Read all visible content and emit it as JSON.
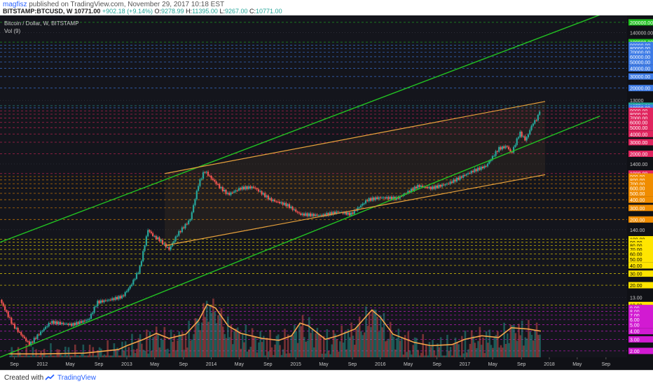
{
  "header": {
    "author": "magfisz",
    "published": "published on TradingView.com, November 29, 2017 10:18 EST",
    "symbol": "BITSTAMP:BTCUSD, W",
    "last": "10771.00",
    "change": "+902.18 (+9.14%)",
    "o_label": "O:",
    "o": "9278.99",
    "h_label": "H:",
    "h": "11395.00",
    "l_label": "L:",
    "l": "9267.00",
    "c_label": "C:",
    "c": "10771.00"
  },
  "legend": {
    "series_title": "Bitcoin / Dollar, W, BITSTAMP",
    "volume_title": "Vol (9)"
  },
  "footer": {
    "created": "Created with",
    "brand": "TradingView"
  },
  "colors": {
    "background": "#14151c",
    "green_channel": "#22c322",
    "orange_channel": "#e8a23c",
    "candle_up": "#26a69a",
    "candle_down": "#ef5350",
    "volume_ma": "#f5a54a"
  },
  "chart_data": {
    "type": "candlestick",
    "title": "Bitcoin / Dollar, W, BITSTAMP",
    "xlabel": "",
    "ylabel": "",
    "log_scale": true,
    "ylim": [
      1.6,
      220000
    ],
    "x_ticks": [
      "Sep",
      "2012",
      "May",
      "Sep",
      "2013",
      "May",
      "Sep",
      "2014",
      "May",
      "Sep",
      "2015",
      "May",
      "Sep",
      "2016",
      "May",
      "Sep",
      "2017",
      "May",
      "Sep",
      "2018",
      "May",
      "Sep"
    ],
    "x_tick_dates": [
      2011.67,
      2012.0,
      2012.33,
      2012.67,
      2013.0,
      2013.33,
      2013.67,
      2014.0,
      2014.33,
      2014.67,
      2015.0,
      2015.33,
      2015.67,
      2016.0,
      2016.33,
      2016.67,
      2017.0,
      2017.33,
      2017.67,
      2018.0,
      2018.33,
      2018.67
    ],
    "price_path": [
      [
        2011.5,
        12
      ],
      [
        2011.65,
        5
      ],
      [
        2011.85,
        2.5
      ],
      [
        2011.95,
        3.5
      ],
      [
        2012.1,
        5.5
      ],
      [
        2012.35,
        5
      ],
      [
        2012.55,
        6
      ],
      [
        2012.65,
        11
      ],
      [
        2012.8,
        12
      ],
      [
        2012.95,
        13.5
      ],
      [
        2013.05,
        20
      ],
      [
        2013.15,
        35
      ],
      [
        2013.25,
        140
      ],
      [
        2013.32,
        110
      ],
      [
        2013.38,
        100
      ],
      [
        2013.5,
        70
      ],
      [
        2013.6,
        120
      ],
      [
        2013.75,
        200
      ],
      [
        2013.85,
        700
      ],
      [
        2013.92,
        1100
      ],
      [
        2014.0,
        850
      ],
      [
        2014.1,
        620
      ],
      [
        2014.2,
        480
      ],
      [
        2014.35,
        600
      ],
      [
        2014.5,
        620
      ],
      [
        2014.7,
        400
      ],
      [
        2014.9,
        330
      ],
      [
        2015.05,
        240
      ],
      [
        2015.3,
        230
      ],
      [
        2015.5,
        260
      ],
      [
        2015.65,
        240
      ],
      [
        2015.85,
        400
      ],
      [
        2016.0,
        430
      ],
      [
        2016.2,
        420
      ],
      [
        2016.45,
        650
      ],
      [
        2016.6,
        600
      ],
      [
        2016.8,
        700
      ],
      [
        2017.0,
        950
      ],
      [
        2017.1,
        1100
      ],
      [
        2017.25,
        1300
      ],
      [
        2017.4,
        2400
      ],
      [
        2017.5,
        2600
      ],
      [
        2017.55,
        2000
      ],
      [
        2017.65,
        4200
      ],
      [
        2017.72,
        3200
      ],
      [
        2017.8,
        5700
      ],
      [
        2017.86,
        7000
      ],
      [
        2017.9,
        10771
      ]
    ],
    "volume_ma_path": [
      [
        2011.6,
        1.8
      ],
      [
        2012.0,
        1.8
      ],
      [
        2012.5,
        1.85
      ],
      [
        2012.9,
        2.1
      ],
      [
        2013.0,
        2.4
      ],
      [
        2013.2,
        3.0
      ],
      [
        2013.35,
        3.7
      ],
      [
        2013.5,
        3.1
      ],
      [
        2013.7,
        3.6
      ],
      [
        2013.85,
        5.8
      ],
      [
        2013.95,
        10.2
      ],
      [
        2014.05,
        9.0
      ],
      [
        2014.2,
        4.8
      ],
      [
        2014.35,
        3.7
      ],
      [
        2014.6,
        3.1
      ],
      [
        2014.8,
        2.9
      ],
      [
        2014.95,
        3.4
      ],
      [
        2015.05,
        5.3
      ],
      [
        2015.15,
        4.8
      ],
      [
        2015.35,
        3.0
      ],
      [
        2015.5,
        3.4
      ],
      [
        2015.7,
        4.3
      ],
      [
        2015.8,
        6.0
      ],
      [
        2015.9,
        8.4
      ],
      [
        2016.0,
        6.5
      ],
      [
        2016.15,
        3.6
      ],
      [
        2016.4,
        2.7
      ],
      [
        2016.6,
        2.4
      ],
      [
        2016.85,
        2.5
      ],
      [
        2017.0,
        3.0
      ],
      [
        2017.2,
        3.4
      ],
      [
        2017.4,
        3.2
      ],
      [
        2017.55,
        4.5
      ],
      [
        2017.75,
        4.3
      ],
      [
        2017.9,
        4.0
      ]
    ],
    "green_lines": [
      [
        [
          2011.5,
          90
        ],
        [
          2018.6,
          260000
        ]
      ],
      [
        [
          2011.5,
          1.6
        ],
        [
          2018.6,
          7500
        ]
      ]
    ],
    "orange_lines": [
      [
        [
          2013.45,
          1000
        ],
        [
          2017.95,
          12500
        ]
      ],
      [
        [
          2013.45,
          80
        ],
        [
          2017.95,
          960
        ]
      ]
    ],
    "axis_labels": [
      {
        "text": "200000.00",
        "value": 200000,
        "bg": "#20c020",
        "fg": "#ffffff"
      },
      {
        "text": "140000.00",
        "value": 140000,
        "bg": "",
        "fg": "#cfcfcf"
      },
      {
        "text": "100000.00",
        "value": 100000,
        "bg": "#20c020",
        "fg": "#ffffff"
      },
      {
        "text": "90000.00",
        "value": 90000,
        "bg": "#3d7be6",
        "fg": "#ffffff"
      },
      {
        "text": "80000.00",
        "value": 80000,
        "bg": "#3d7be6",
        "fg": "#ffffff"
      },
      {
        "text": "70000.00",
        "value": 70000,
        "bg": "#3d7be6",
        "fg": "#ffffff"
      },
      {
        "text": "60000.00",
        "value": 60000,
        "bg": "#3d7be6",
        "fg": "#ffffff"
      },
      {
        "text": "50000.00",
        "value": 50000,
        "bg": "#3d7be6",
        "fg": "#ffffff"
      },
      {
        "text": "40000.00",
        "value": 40000,
        "bg": "#3d7be6",
        "fg": "#ffffff"
      },
      {
        "text": "30000.00",
        "value": 30000,
        "bg": "#3d7be6",
        "fg": "#ffffff"
      },
      {
        "text": "20000.00",
        "value": 20000,
        "bg": "#3d7be6",
        "fg": "#ffffff"
      },
      {
        "text": "13000",
        "value": 13000,
        "bg": "",
        "fg": "#cfcfcf"
      },
      {
        "text": "10771.00",
        "value": 10771,
        "bg": "#26a69a",
        "fg": "#ffffff"
      },
      {
        "text": "10000.00",
        "value": 10000,
        "bg": "#3d7be6",
        "fg": "#ffffff"
      },
      {
        "text": "9000.00",
        "value": 9000,
        "bg": "#e0245e",
        "fg": "#ffffff"
      },
      {
        "text": "8000.00",
        "value": 8000,
        "bg": "#e0245e",
        "fg": "#ffffff"
      },
      {
        "text": "7000.00",
        "value": 7000,
        "bg": "#e0245e",
        "fg": "#ffffff"
      },
      {
        "text": "6000.00",
        "value": 6000,
        "bg": "#e0245e",
        "fg": "#ffffff"
      },
      {
        "text": "5000.00",
        "value": 5000,
        "bg": "#e0245e",
        "fg": "#ffffff"
      },
      {
        "text": "4000.00",
        "value": 4000,
        "bg": "#e0245e",
        "fg": "#ffffff"
      },
      {
        "text": "3000.00",
        "value": 3000,
        "bg": "#e0245e",
        "fg": "#ffffff"
      },
      {
        "text": "2000.00",
        "value": 2000,
        "bg": "#e0245e",
        "fg": "#ffffff"
      },
      {
        "text": "1400.00",
        "value": 1400,
        "bg": "",
        "fg": "#cfcfcf"
      },
      {
        "text": "1000.00",
        "value": 1000,
        "bg": "#e0245e",
        "fg": "#ffffff"
      },
      {
        "text": "900.00",
        "value": 900,
        "bg": "#f08c00",
        "fg": "#ffffff"
      },
      {
        "text": "800.00",
        "value": 800,
        "bg": "#f08c00",
        "fg": "#ffffff"
      },
      {
        "text": "700.00",
        "value": 700,
        "bg": "#f08c00",
        "fg": "#ffffff"
      },
      {
        "text": "600.00",
        "value": 600,
        "bg": "#f08c00",
        "fg": "#ffffff"
      },
      {
        "text": "500.00",
        "value": 500,
        "bg": "#f08c00",
        "fg": "#ffffff"
      },
      {
        "text": "400.00",
        "value": 400,
        "bg": "#f08c00",
        "fg": "#ffffff"
      },
      {
        "text": "300.00",
        "value": 300,
        "bg": "#f08c00",
        "fg": "#ffffff"
      },
      {
        "text": "200.00",
        "value": 200,
        "bg": "#f08c00",
        "fg": "#ffffff"
      },
      {
        "text": "140.00",
        "value": 140,
        "bg": "",
        "fg": "#cfcfcf"
      },
      {
        "text": "100.00",
        "value": 100,
        "bg": "#ffe500",
        "fg": "#000000"
      },
      {
        "text": "90.00",
        "value": 90,
        "bg": "#ffe500",
        "fg": "#000000"
      },
      {
        "text": "80.00",
        "value": 80,
        "bg": "#ffe500",
        "fg": "#000000"
      },
      {
        "text": "70.00",
        "value": 70,
        "bg": "#ffe500",
        "fg": "#000000"
      },
      {
        "text": "60.00",
        "value": 60,
        "bg": "#ffe500",
        "fg": "#000000"
      },
      {
        "text": "50.00",
        "value": 50,
        "bg": "#ffe500",
        "fg": "#000000"
      },
      {
        "text": "40.00",
        "value": 40,
        "bg": "#ffe500",
        "fg": "#000000"
      },
      {
        "text": "30.00",
        "value": 30,
        "bg": "#ffe500",
        "fg": "#000000"
      },
      {
        "text": "20.00",
        "value": 20,
        "bg": "#ffe500",
        "fg": "#000000"
      },
      {
        "text": "13.00",
        "value": 13,
        "bg": "",
        "fg": "#cfcfcf"
      },
      {
        "text": "10.00",
        "value": 10,
        "bg": "#ffe500",
        "fg": "#000000"
      },
      {
        "text": "9.00",
        "value": 9,
        "bg": "#d21ad2",
        "fg": "#ffffff"
      },
      {
        "text": "8.00",
        "value": 8,
        "bg": "#d21ad2",
        "fg": "#ffffff"
      },
      {
        "text": "7.00",
        "value": 7,
        "bg": "#d21ad2",
        "fg": "#ffffff"
      },
      {
        "text": "6.00",
        "value": 6,
        "bg": "#d21ad2",
        "fg": "#ffffff"
      },
      {
        "text": "5.00",
        "value": 5,
        "bg": "#d21ad2",
        "fg": "#ffffff"
      },
      {
        "text": "4.00",
        "value": 4,
        "bg": "#d21ad2",
        "fg": "#ffffff"
      },
      {
        "text": "3.00",
        "value": 3,
        "bg": "#d21ad2",
        "fg": "#ffffff"
      },
      {
        "text": "2.00",
        "value": 2,
        "bg": "#d21ad2",
        "fg": "#ffffff"
      }
    ]
  }
}
